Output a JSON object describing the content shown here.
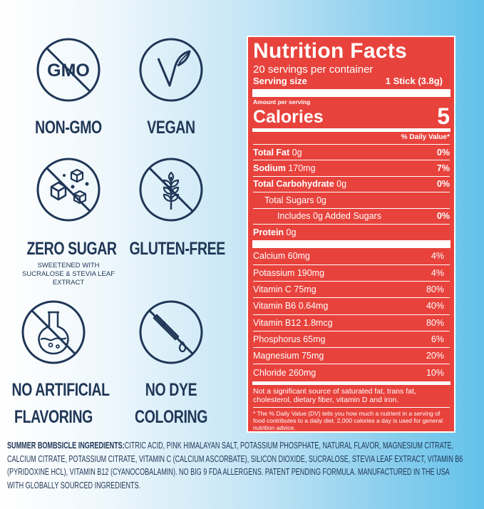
{
  "badges": [
    {
      "icon": "gmo-icon",
      "icon_text": "GMO",
      "title": "NON-GMO",
      "sub": ""
    },
    {
      "icon": "vegan-leaf-icon",
      "title": "VEGAN",
      "sub": ""
    },
    {
      "icon": "sugar-cubes-icon",
      "title": "ZERO SUGAR",
      "sub": "SWEETENED WITH SUCRALOSE & STEVIA LEAF EXTRACT"
    },
    {
      "icon": "wheat-icon",
      "title": "GLUTEN-FREE",
      "sub": ""
    },
    {
      "icon": "flask-icon",
      "title1": "NO ARTIFICIAL",
      "title2": "FLAVORING"
    },
    {
      "icon": "dropper-icon",
      "title1": "NO DYE",
      "title2": "COLORING"
    }
  ],
  "nutrition": {
    "title": "Nutrition Facts",
    "servings": "20 servings per container",
    "serving_size_label": "Serving size",
    "serving_size_value": "1 Stick (3.8g)",
    "amount_per_serving": "Amount per serving",
    "calories_label": "Calories",
    "calories_value": "5",
    "daily_value_header": "% Daily Value*",
    "rows": [
      {
        "bold": "Total Fat",
        "amount": " 0g",
        "pct": "0%"
      },
      {
        "bold": "Sodium",
        "amount": " 170mg",
        "pct": "7%"
      },
      {
        "bold": "Total Carbohydrate",
        "amount": " 0g",
        "pct": "0%"
      },
      {
        "bold": "",
        "amount": "Total Sugars 0g",
        "pct": ""
      },
      {
        "bold": "",
        "amount": "Includes 0g Added Sugars",
        "pct": "0%"
      },
      {
        "bold": "Protein",
        "amount": " 0g",
        "pct": ""
      }
    ],
    "vitamins": [
      {
        "name": "Calcium 60mg",
        "pct": "4%"
      },
      {
        "name": "Potassium 190mg",
        "pct": "4%"
      },
      {
        "name": "Vitamin C 75mg",
        "pct": "80%"
      },
      {
        "name": "Vitamin B6 0.64mg",
        "pct": "40%"
      },
      {
        "name": "Vitamin B12 1.8mcg",
        "pct": "80%"
      },
      {
        "name": "Phosphorus 65mg",
        "pct": "6%"
      },
      {
        "name": "Magnesium 75mg",
        "pct": "20%"
      },
      {
        "name": "Chloride 260mg",
        "pct": "10%"
      }
    ],
    "note": "Not a significant source of saturated fat, trans fat, cholesterol, dietary fiber, vitamin D and iron.",
    "footnote": "* The % Daily Value (DV) tells you how much a nutrient in a serving of food contributes to a daily diet. 2,000 calories a day is used for general nutrition advice."
  },
  "ingredients": {
    "heading": "SUMMER BOMBSICLE INGREDIENTS:",
    "text": "CITRIC ACID, PINK HIMALAYAN SALT, POTASSIUM PHOSPHATE, NATURAL FLAVOR, MAGNESIUM CITRATE, CALCIUM CITRATE, POTASSIUM CITRATE, VITAMIN C (CALCIUM ASCORBATE), SILICON DIOXIDE, SUCRALOSE, STEVIA LEAF EXTRACT, VITAMIN B6 (PYRIDOXINE HCL), VITAMIN B12 (CYANOCOBALAMIN). NO BIG 9 FDA ALLERGENS. PATENT PENDING FORMULA. MANUFACTURED IN THE USA WITH GLOBALLY SOURCED INGREDIENTS."
  },
  "colors": {
    "navy": "#1f3656",
    "panel_red": "#e8423c"
  }
}
